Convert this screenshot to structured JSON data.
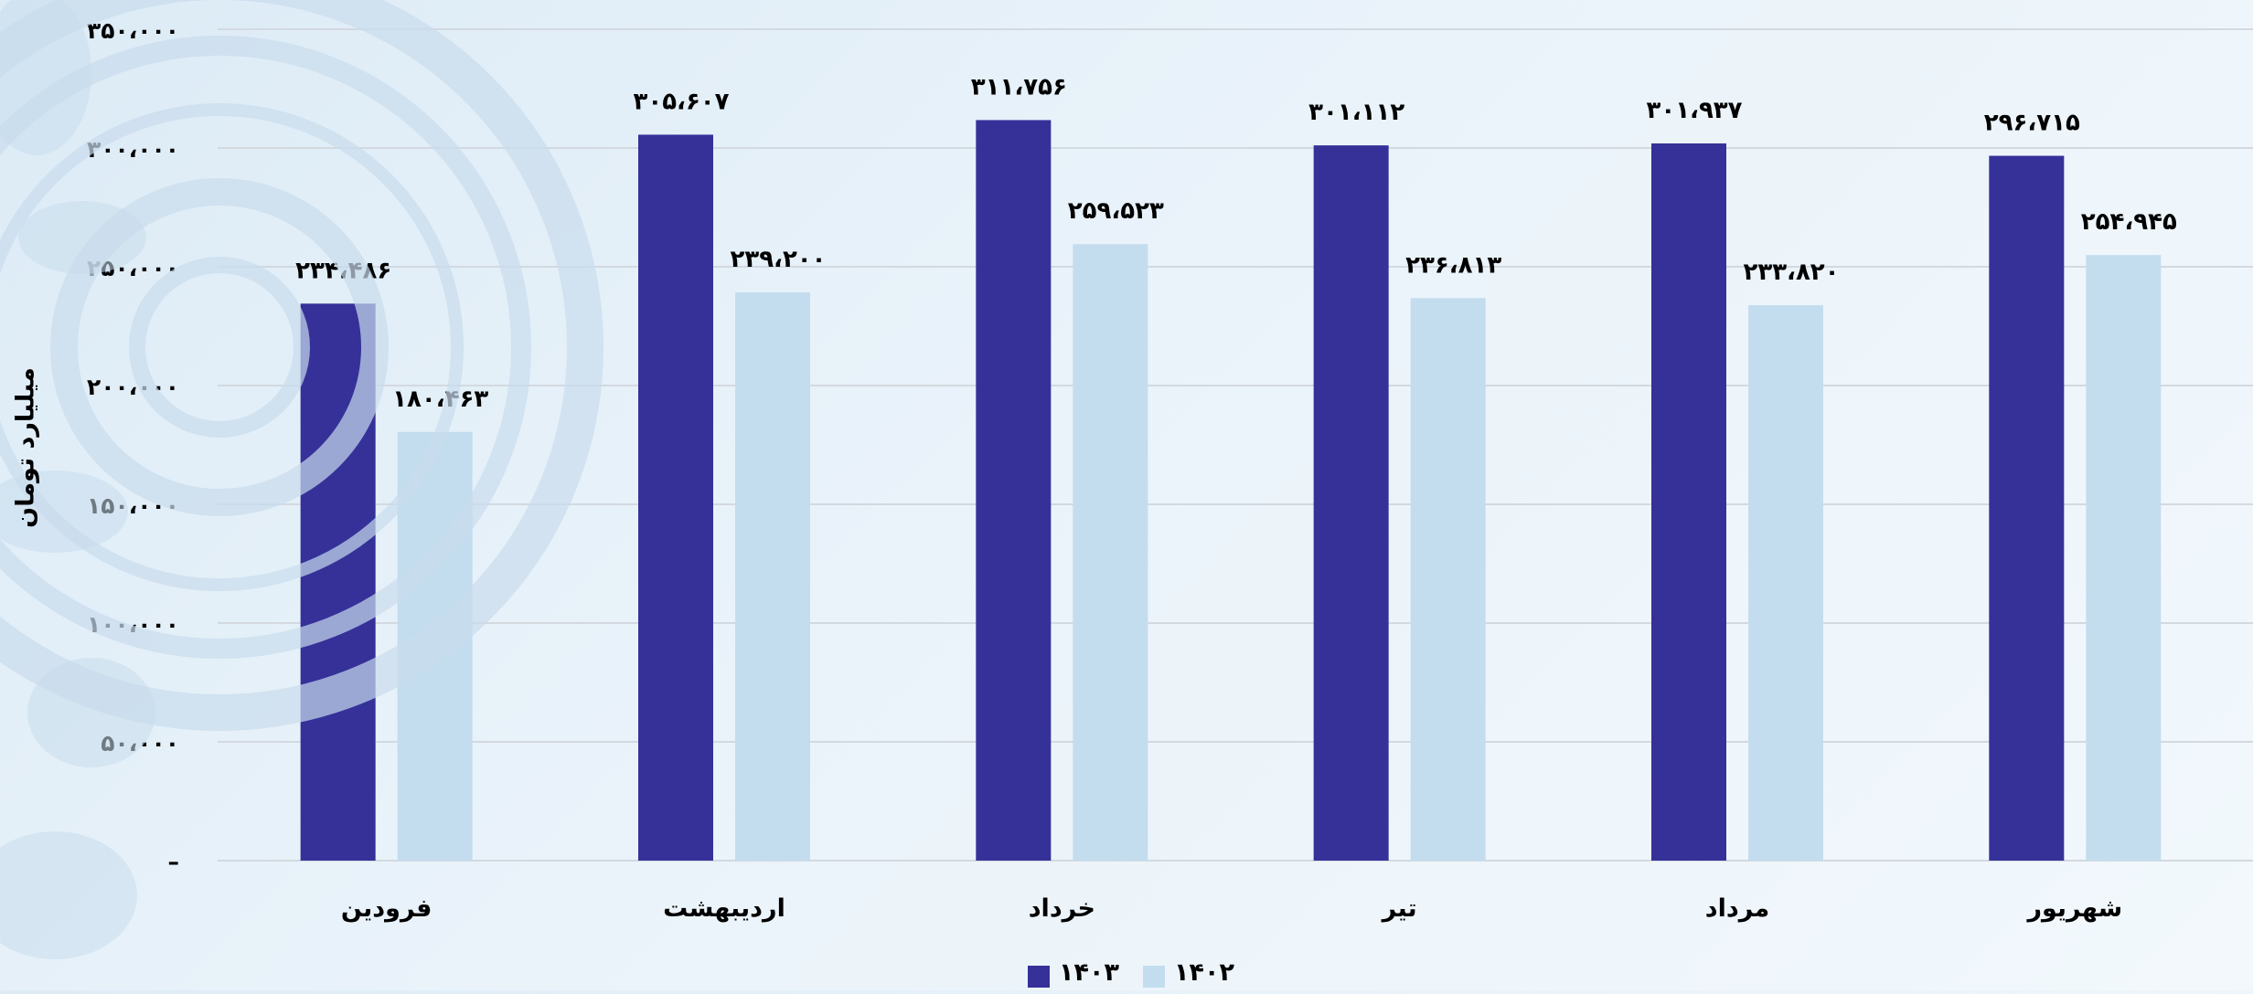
{
  "chart_data": {
    "type": "bar",
    "title": "",
    "xlabel": "",
    "ylabel": "میلیارد تومان",
    "ylim": [
      0,
      350000
    ],
    "yticks": [
      {
        "value": 0,
        "label": "–"
      },
      {
        "value": 50000,
        "label": "۵۰،۰۰۰"
      },
      {
        "value": 100000,
        "label": "۱۰۰،۰۰۰"
      },
      {
        "value": 150000,
        "label": "۱۵۰،۰۰۰"
      },
      {
        "value": 200000,
        "label": "۲۰۰،۰۰۰"
      },
      {
        "value": 250000,
        "label": "۲۵۰،۰۰۰"
      },
      {
        "value": 300000,
        "label": "۳۰۰،۰۰۰"
      },
      {
        "value": 350000,
        "label": "۳۵۰،۰۰۰"
      }
    ],
    "grid": true,
    "legend_position": "bottom-center",
    "categories": [
      "فرودین",
      "اردیبهشت",
      "خرداد",
      "تیر",
      "مرداد",
      "شهریور"
    ],
    "series": [
      {
        "name": "۱۴۰۳",
        "color": "#353199",
        "values": [
          234486,
          305607,
          311756,
          301112,
          301937,
          296715
        ],
        "labels": [
          "۲۳۴،۴۸۶",
          "۳۰۵،۶۰۷",
          "۳۱۱،۷۵۶",
          "۳۰۱،۱۱۲",
          "۳۰۱،۹۳۷",
          "۲۹۶،۷۱۵"
        ]
      },
      {
        "name": "۱۴۰۲",
        "color": "#c3ddef",
        "values": [
          180463,
          239200,
          259523,
          236813,
          233820,
          254945
        ],
        "labels": [
          "۱۸۰،۴۶۳",
          "۲۳۹،۲۰۰",
          "۲۵۹،۵۲۳",
          "۲۳۶،۸۱۳",
          "۲۳۳،۸۲۰",
          "۲۵۴،۹۴۵"
        ]
      }
    ]
  }
}
